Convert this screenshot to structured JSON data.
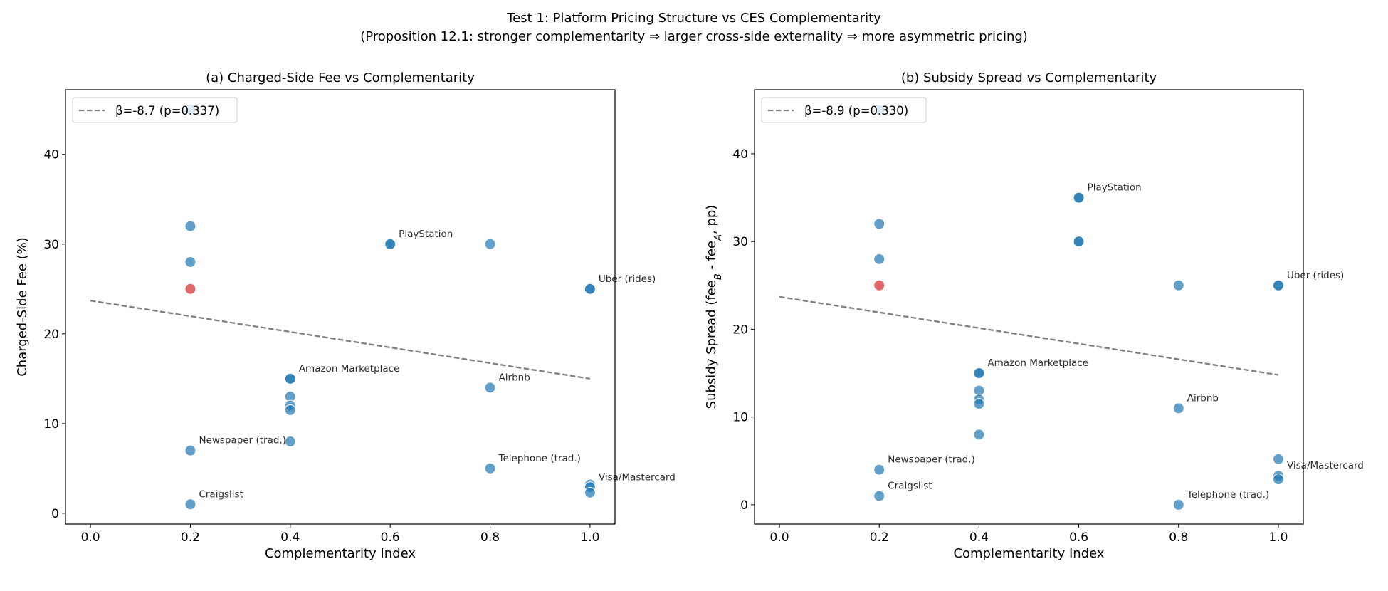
{
  "suptitle": {
    "line1": "Test 1: Platform Pricing Structure vs CES Complementarity",
    "line2": "(Proposition 12.1: stronger complementarity ⇒ larger cross-side externality ⇒ more asymmetric pricing)"
  },
  "colors": {
    "point": "#1f77b4",
    "highlight": "#d62728",
    "fit": "#7f7f7f"
  },
  "chart_data": [
    {
      "type": "scatter",
      "title": "(a) Charged-Side Fee vs Complementarity",
      "xlabel": "Complementarity Index",
      "ylabel": "Charged-Side Fee (%)",
      "xlim": [
        -0.05,
        1.05
      ],
      "ylim": [
        -1.2,
        47.2
      ],
      "xticks": [
        "0.0",
        "0.2",
        "0.4",
        "0.6",
        "0.8",
        "1.0"
      ],
      "yticks": [
        "0",
        "10",
        "20",
        "30",
        "40"
      ],
      "grid": false,
      "legend_position": "upper-left",
      "fit": {
        "label": "β=-8.7 (p=0.337)",
        "intercept": 23.7,
        "slope": -8.7,
        "x_range": [
          0,
          1
        ]
      },
      "points": [
        {
          "x": 0.2,
          "y": 45
        },
        {
          "x": 0.2,
          "y": 32
        },
        {
          "x": 0.2,
          "y": 28
        },
        {
          "x": 0.2,
          "y": 25,
          "highlight": true
        },
        {
          "x": 0.2,
          "y": 7,
          "label": "Newspaper (trad.)"
        },
        {
          "x": 0.2,
          "y": 1,
          "label": "Craigslist"
        },
        {
          "x": 0.4,
          "y": 15,
          "label": "Amazon Marketplace"
        },
        {
          "x": 0.4,
          "y": 15
        },
        {
          "x": 0.4,
          "y": 13
        },
        {
          "x": 0.4,
          "y": 12
        },
        {
          "x": 0.4,
          "y": 11.5
        },
        {
          "x": 0.4,
          "y": 8
        },
        {
          "x": 0.6,
          "y": 30,
          "label": "PlayStation"
        },
        {
          "x": 0.6,
          "y": 30
        },
        {
          "x": 0.8,
          "y": 30
        },
        {
          "x": 0.8,
          "y": 14,
          "label": "Airbnb"
        },
        {
          "x": 0.8,
          "y": 5,
          "label": "Telephone (trad.)"
        },
        {
          "x": 1.0,
          "y": 25,
          "label": "Uber (rides)"
        },
        {
          "x": 1.0,
          "y": 25
        },
        {
          "x": 1.0,
          "y": 3.2
        },
        {
          "x": 1.0,
          "y": 2.9,
          "label": "Visa/Mastercard"
        },
        {
          "x": 1.0,
          "y": 2.3
        }
      ]
    },
    {
      "type": "scatter",
      "title": "(b) Subsidy Spread vs Complementarity",
      "xlabel": "Complementarity Index",
      "ylabel": "Subsidy Spread (fee_B - fee_A, pp)",
      "xlim": [
        -0.05,
        1.05
      ],
      "ylim": [
        -2.2,
        47.3
      ],
      "xticks": [
        "0.0",
        "0.2",
        "0.4",
        "0.6",
        "0.8",
        "1.0"
      ],
      "yticks": [
        "0",
        "10",
        "20",
        "30",
        "40"
      ],
      "grid": false,
      "legend_position": "upper-left",
      "fit": {
        "label": "β=-8.9 (p=0.330)",
        "intercept": 23.7,
        "slope": -8.9,
        "x_range": [
          0,
          1
        ]
      },
      "points": [
        {
          "x": 0.2,
          "y": 45
        },
        {
          "x": 0.2,
          "y": 32
        },
        {
          "x": 0.2,
          "y": 28
        },
        {
          "x": 0.2,
          "y": 25,
          "highlight": true
        },
        {
          "x": 0.2,
          "y": 4,
          "label": "Newspaper (trad.)"
        },
        {
          "x": 0.2,
          "y": 1,
          "label": "Craigslist"
        },
        {
          "x": 0.4,
          "y": 15,
          "label": "Amazon Marketplace"
        },
        {
          "x": 0.4,
          "y": 15
        },
        {
          "x": 0.4,
          "y": 13
        },
        {
          "x": 0.4,
          "y": 12
        },
        {
          "x": 0.4,
          "y": 11.5
        },
        {
          "x": 0.4,
          "y": 8
        },
        {
          "x": 0.6,
          "y": 35,
          "label": "PlayStation"
        },
        {
          "x": 0.6,
          "y": 35
        },
        {
          "x": 0.6,
          "y": 30
        },
        {
          "x": 0.6,
          "y": 30
        },
        {
          "x": 0.8,
          "y": 25
        },
        {
          "x": 0.8,
          "y": 11,
          "label": "Airbnb"
        },
        {
          "x": 0.8,
          "y": 0,
          "label": "Telephone (trad.)"
        },
        {
          "x": 1.0,
          "y": 25,
          "label": "Uber (rides)"
        },
        {
          "x": 1.0,
          "y": 25
        },
        {
          "x": 1.0,
          "y": 5.2
        },
        {
          "x": 1.0,
          "y": 3.3,
          "label": "Visa/Mastercard"
        },
        {
          "x": 1.0,
          "y": 2.9
        }
      ]
    }
  ]
}
